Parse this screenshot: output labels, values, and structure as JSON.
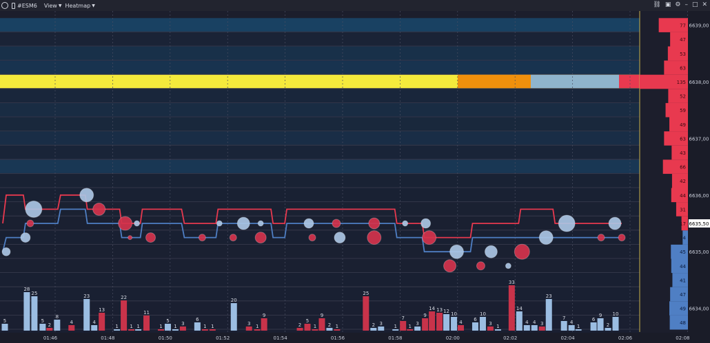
{
  "toolbar": {
    "symbol": "#ESM6",
    "view_label": "View",
    "heatmap_label": "Heatmap",
    "right_icons": [
      "link-icon",
      "camera-icon",
      "gear-icon",
      "minimize-icon",
      "maximize-icon",
      "close-icon"
    ],
    "icon_glyphs": [
      "⛓",
      "▣",
      "⚙",
      "–",
      "□",
      "✕"
    ]
  },
  "colors": {
    "background": "#1c1e2c",
    "bid_line": "#4f7fc4",
    "ask_line": "#e8394f",
    "sell_bar": "#c8334a",
    "buy_bar": "#9bbde2",
    "profile_ask": "#e8394f",
    "profile_bid": "#4f7fc4",
    "cursor": "#c9b34c"
  },
  "chart_data": {
    "type": "heatmap",
    "price_axis": {
      "labels": [
        "6639,00",
        "6638,00",
        "6637,00",
        "6636,00",
        "6635,50",
        "6635,00",
        "6634,00"
      ],
      "current_price": "6635,50",
      "ylim": [
        6633.25,
        6639.25
      ],
      "tick_step": 0.25
    },
    "time_axis": {
      "labels": [
        "01:46",
        "01:48",
        "01:50",
        "01:52",
        "01:54",
        "01:56",
        "01:58",
        "02:00",
        "02:02",
        "02:04",
        "02:06",
        "02:08"
      ]
    },
    "heatmap_rows": [
      {
        "price": 6639.0,
        "level": 0.55
      },
      {
        "price": 6638.75,
        "level": 0.12
      },
      {
        "price": 6638.5,
        "level": 0.35
      },
      {
        "price": 6638.25,
        "level": 0.4
      },
      {
        "price": 6638.0,
        "level": 1.0
      },
      {
        "price": 6637.75,
        "level": 0.2
      },
      {
        "price": 6637.5,
        "level": 0.3
      },
      {
        "price": 6637.25,
        "level": 0.22
      },
      {
        "price": 6637.0,
        "level": 0.32
      },
      {
        "price": 6636.75,
        "level": 0.15
      },
      {
        "price": 6636.5,
        "level": 0.45
      },
      {
        "price": 6636.25,
        "level": 0.1
      },
      {
        "price": 6636.0,
        "level": 0.08
      },
      {
        "price": 6635.75,
        "level": 0.06
      },
      {
        "price": 6635.5,
        "level": 0.05
      },
      {
        "price": 6635.25,
        "level": 0.04
      },
      {
        "price": 6635.0,
        "level": 0.05
      },
      {
        "price": 6634.75,
        "level": 0.05
      },
      {
        "price": 6634.5,
        "level": 0.04
      },
      {
        "price": 6634.25,
        "level": 0.04
      },
      {
        "price": 6634.0,
        "level": 0.03
      },
      {
        "price": 6633.75,
        "level": 0.03
      },
      {
        "price": 6633.5,
        "level": 0.03
      }
    ],
    "depth_profile": {
      "ask": [
        {
          "price": 6639.0,
          "size": 77
        },
        {
          "price": 6638.75,
          "size": 47
        },
        {
          "price": 6638.5,
          "size": 53
        },
        {
          "price": 6638.25,
          "size": 63
        },
        {
          "price": 6638.0,
          "size": 135
        },
        {
          "price": 6637.75,
          "size": 52
        },
        {
          "price": 6637.5,
          "size": 59
        },
        {
          "price": 6637.25,
          "size": 49
        },
        {
          "price": 6637.0,
          "size": 63
        },
        {
          "price": 6636.75,
          "size": 43
        },
        {
          "price": 6636.5,
          "size": 66
        },
        {
          "price": 6636.25,
          "size": 42
        },
        {
          "price": 6636.0,
          "size": 44
        },
        {
          "price": 6635.75,
          "size": 31
        },
        {
          "price": 6635.5,
          "size": 17
        }
      ],
      "bid": [
        {
          "price": 6635.25,
          "size": 14
        },
        {
          "price": 6635.0,
          "size": 45
        },
        {
          "price": 6634.75,
          "size": 44
        },
        {
          "price": 6634.5,
          "size": 41
        },
        {
          "price": 6634.25,
          "size": 47
        },
        {
          "price": 6634.0,
          "size": 49
        },
        {
          "price": 6633.75,
          "size": 48
        }
      ]
    },
    "best_ask": [
      {
        "t": 0.0,
        "p": 6635.5
      },
      {
        "t": 0.5,
        "p": 6636.0
      },
      {
        "t": 3.0,
        "p": 6636.0
      },
      {
        "t": 3.3,
        "p": 6635.75
      },
      {
        "t": 8.0,
        "p": 6635.75
      },
      {
        "t": 8.4,
        "p": 6636.0
      },
      {
        "t": 12.0,
        "p": 6636.0
      },
      {
        "t": 12.3,
        "p": 6635.75
      },
      {
        "t": 17.0,
        "p": 6635.75
      },
      {
        "t": 17.3,
        "p": 6635.5
      },
      {
        "t": 20.0,
        "p": 6635.5
      },
      {
        "t": 20.3,
        "p": 6635.75
      },
      {
        "t": 26.0,
        "p": 6635.75
      },
      {
        "t": 26.4,
        "p": 6635.5
      },
      {
        "t": 31.0,
        "p": 6635.5
      },
      {
        "t": 31.3,
        "p": 6635.75
      },
      {
        "t": 39.0,
        "p": 6635.75
      },
      {
        "t": 39.3,
        "p": 6635.5
      },
      {
        "t": 41.0,
        "p": 6635.5
      },
      {
        "t": 41.3,
        "p": 6635.75
      },
      {
        "t": 48.0,
        "p": 6635.75
      },
      {
        "t": 48.3,
        "p": 6635.75
      },
      {
        "t": 57.0,
        "p": 6635.75
      },
      {
        "t": 57.3,
        "p": 6635.5
      },
      {
        "t": 61.0,
        "p": 6635.5
      },
      {
        "t": 61.3,
        "p": 6635.25
      },
      {
        "t": 68.0,
        "p": 6635.25
      },
      {
        "t": 68.3,
        "p": 6635.5
      },
      {
        "t": 75.0,
        "p": 6635.5
      },
      {
        "t": 75.3,
        "p": 6635.75
      },
      {
        "t": 80.0,
        "p": 6635.75
      },
      {
        "t": 80.3,
        "p": 6635.5
      },
      {
        "t": 84.0,
        "p": 6635.5
      },
      {
        "t": 84.3,
        "p": 6635.5
      },
      {
        "t": 87.0,
        "p": 6635.5
      },
      {
        "t": 87.3,
        "p": 6635.5
      },
      {
        "t": 90.0,
        "p": 6635.5
      }
    ],
    "best_bid": [
      {
        "t": 0.0,
        "p": 6635.0
      },
      {
        "t": 0.5,
        "p": 6635.25
      },
      {
        "t": 3.0,
        "p": 6635.25
      },
      {
        "t": 3.3,
        "p": 6635.5
      },
      {
        "t": 8.0,
        "p": 6635.5
      },
      {
        "t": 8.4,
        "p": 6635.75
      },
      {
        "t": 12.0,
        "p": 6635.75
      },
      {
        "t": 12.3,
        "p": 6635.5
      },
      {
        "t": 17.0,
        "p": 6635.5
      },
      {
        "t": 17.3,
        "p": 6635.25
      },
      {
        "t": 20.0,
        "p": 6635.25
      },
      {
        "t": 20.3,
        "p": 6635.5
      },
      {
        "t": 26.0,
        "p": 6635.5
      },
      {
        "t": 26.4,
        "p": 6635.25
      },
      {
        "t": 31.0,
        "p": 6635.25
      },
      {
        "t": 31.3,
        "p": 6635.5
      },
      {
        "t": 39.0,
        "p": 6635.5
      },
      {
        "t": 39.3,
        "p": 6635.25
      },
      {
        "t": 41.0,
        "p": 6635.25
      },
      {
        "t": 41.3,
        "p": 6635.5
      },
      {
        "t": 48.0,
        "p": 6635.5
      },
      {
        "t": 48.3,
        "p": 6635.5
      },
      {
        "t": 57.0,
        "p": 6635.5
      },
      {
        "t": 57.3,
        "p": 6635.25
      },
      {
        "t": 61.0,
        "p": 6635.25
      },
      {
        "t": 61.3,
        "p": 6635.0
      },
      {
        "t": 68.0,
        "p": 6635.0
      },
      {
        "t": 68.3,
        "p": 6635.25
      },
      {
        "t": 75.0,
        "p": 6635.25
      },
      {
        "t": 75.3,
        "p": 6635.25
      },
      {
        "t": 80.0,
        "p": 6635.25
      },
      {
        "t": 80.3,
        "p": 6635.25
      },
      {
        "t": 84.0,
        "p": 6635.25
      },
      {
        "t": 84.3,
        "p": 6635.25
      },
      {
        "t": 87.0,
        "p": 6635.25
      },
      {
        "t": 87.3,
        "p": 6635.25
      },
      {
        "t": 90.0,
        "p": 6635.25
      }
    ],
    "trade_bubbles": [
      {
        "t": 0.5,
        "p": 6635.0,
        "size": 6,
        "side": "buy"
      },
      {
        "t": 3.3,
        "p": 6635.25,
        "size": 7,
        "side": "buy"
      },
      {
        "t": 4.5,
        "p": 6635.75,
        "size": 12,
        "side": "buy"
      },
      {
        "t": 4.0,
        "p": 6635.5,
        "size": 5,
        "side": "sell"
      },
      {
        "t": 12.2,
        "p": 6636.0,
        "size": 10,
        "side": "buy"
      },
      {
        "t": 14.0,
        "p": 6635.75,
        "size": 9,
        "side": "sell"
      },
      {
        "t": 17.8,
        "p": 6635.5,
        "size": 10,
        "side": "sell"
      },
      {
        "t": 19.5,
        "p": 6635.5,
        "size": 4,
        "side": "buy"
      },
      {
        "t": 18.5,
        "p": 6635.25,
        "size": 3,
        "side": "sell"
      },
      {
        "t": 21.5,
        "p": 6635.25,
        "size": 7,
        "side": "sell"
      },
      {
        "t": 29.0,
        "p": 6635.25,
        "size": 5,
        "side": "sell"
      },
      {
        "t": 31.5,
        "p": 6635.5,
        "size": 4,
        "side": "buy"
      },
      {
        "t": 33.5,
        "p": 6635.25,
        "size": 5,
        "side": "sell"
      },
      {
        "t": 35.0,
        "p": 6635.5,
        "size": 9,
        "side": "buy"
      },
      {
        "t": 37.5,
        "p": 6635.25,
        "size": 8,
        "side": "sell"
      },
      {
        "t": 37.5,
        "p": 6635.5,
        "size": 4,
        "side": "buy"
      },
      {
        "t": 44.5,
        "p": 6635.5,
        "size": 7,
        "side": "buy"
      },
      {
        "t": 45.0,
        "p": 6635.25,
        "size": 5,
        "side": "sell"
      },
      {
        "t": 48.5,
        "p": 6635.5,
        "size": 6,
        "side": "sell"
      },
      {
        "t": 49.0,
        "p": 6635.25,
        "size": 8,
        "side": "buy"
      },
      {
        "t": 54.0,
        "p": 6635.5,
        "size": 8,
        "side": "sell"
      },
      {
        "t": 54.0,
        "p": 6635.25,
        "size": 10,
        "side": "sell"
      },
      {
        "t": 58.5,
        "p": 6635.5,
        "size": 4,
        "side": "buy"
      },
      {
        "t": 61.5,
        "p": 6635.5,
        "size": 7,
        "side": "buy"
      },
      {
        "t": 62.0,
        "p": 6635.25,
        "size": 10,
        "side": "sell"
      },
      {
        "t": 65.0,
        "p": 6634.75,
        "size": 9,
        "side": "sell"
      },
      {
        "t": 66.0,
        "p": 6635.0,
        "size": 10,
        "side": "buy"
      },
      {
        "t": 69.5,
        "p": 6634.75,
        "size": 6,
        "side": "sell"
      },
      {
        "t": 71.0,
        "p": 6635.0,
        "size": 9,
        "side": "buy"
      },
      {
        "t": 73.5,
        "p": 6634.75,
        "size": 4,
        "side": "buy"
      },
      {
        "t": 75.5,
        "p": 6635.0,
        "size": 11,
        "side": "sell"
      },
      {
        "t": 79.0,
        "p": 6635.25,
        "size": 10,
        "side": "buy"
      },
      {
        "t": 82.0,
        "p": 6635.5,
        "size": 12,
        "side": "buy"
      },
      {
        "t": 87.0,
        "p": 6635.25,
        "size": 5,
        "side": "sell"
      },
      {
        "t": 89.0,
        "p": 6635.5,
        "size": 9,
        "side": "buy"
      },
      {
        "t": 90.0,
        "p": 6635.25,
        "size": 5,
        "side": "sell"
      }
    ],
    "volume_bars": [
      {
        "t": 0.3,
        "v": 5,
        "side": "buy"
      },
      {
        "t": 3.5,
        "v": 28,
        "side": "buy"
      },
      {
        "t": 4.6,
        "v": 25,
        "side": "buy"
      },
      {
        "t": 5.8,
        "v": 5,
        "side": "buy"
      },
      {
        "t": 6.8,
        "v": 2,
        "side": "sell"
      },
      {
        "t": 7.9,
        "v": 8,
        "side": "buy"
      },
      {
        "t": 10.0,
        "v": 4,
        "side": "sell"
      },
      {
        "t": 12.2,
        "v": 23,
        "side": "buy"
      },
      {
        "t": 13.3,
        "v": 4,
        "side": "buy"
      },
      {
        "t": 14.4,
        "v": 13,
        "side": "sell"
      },
      {
        "t": 16.6,
        "v": 1,
        "side": "buy"
      },
      {
        "t": 17.6,
        "v": 22,
        "side": "sell"
      },
      {
        "t": 18.7,
        "v": 1,
        "side": "sell"
      },
      {
        "t": 19.7,
        "v": 1,
        "side": "buy"
      },
      {
        "t": 20.9,
        "v": 11,
        "side": "sell"
      },
      {
        "t": 23.0,
        "v": 1,
        "side": "sell"
      },
      {
        "t": 24.0,
        "v": 5,
        "side": "buy"
      },
      {
        "t": 25.1,
        "v": 1,
        "side": "buy"
      },
      {
        "t": 26.2,
        "v": 3,
        "side": "sell"
      },
      {
        "t": 28.3,
        "v": 6,
        "side": "buy"
      },
      {
        "t": 29.4,
        "v": 1,
        "side": "sell"
      },
      {
        "t": 30.5,
        "v": 1,
        "side": "sell"
      },
      {
        "t": 33.6,
        "v": 20,
        "side": "buy"
      },
      {
        "t": 35.8,
        "v": 3,
        "side": "sell"
      },
      {
        "t": 37.0,
        "v": 1,
        "side": "sell"
      },
      {
        "t": 38.0,
        "v": 9,
        "side": "sell"
      },
      {
        "t": 43.2,
        "v": 2,
        "side": "sell"
      },
      {
        "t": 44.3,
        "v": 5,
        "side": "sell"
      },
      {
        "t": 45.4,
        "v": 1,
        "side": "sell"
      },
      {
        "t": 46.4,
        "v": 9,
        "side": "sell"
      },
      {
        "t": 47.5,
        "v": 2,
        "side": "buy"
      },
      {
        "t": 48.6,
        "v": 1,
        "side": "sell"
      },
      {
        "t": 52.8,
        "v": 25,
        "side": "sell"
      },
      {
        "t": 53.9,
        "v": 2,
        "side": "buy"
      },
      {
        "t": 55.0,
        "v": 3,
        "side": "buy"
      },
      {
        "t": 57.1,
        "v": 1,
        "side": "buy"
      },
      {
        "t": 58.2,
        "v": 7,
        "side": "sell"
      },
      {
        "t": 59.2,
        "v": 1,
        "side": "sell"
      },
      {
        "t": 60.3,
        "v": 3,
        "side": "buy"
      },
      {
        "t": 61.4,
        "v": 9,
        "side": "sell"
      },
      {
        "t": 62.4,
        "v": 14,
        "side": "sell"
      },
      {
        "t": 63.5,
        "v": 13,
        "side": "sell"
      },
      {
        "t": 64.5,
        "v": 12,
        "side": "buy"
      },
      {
        "t": 65.6,
        "v": 10,
        "side": "buy"
      },
      {
        "t": 66.6,
        "v": 4,
        "side": "sell"
      },
      {
        "t": 68.7,
        "v": 6,
        "side": "buy"
      },
      {
        "t": 69.8,
        "v": 10,
        "side": "buy"
      },
      {
        "t": 70.9,
        "v": 3,
        "side": "sell"
      },
      {
        "t": 72.0,
        "v": 1,
        "side": "buy"
      },
      {
        "t": 74.0,
        "v": 33,
        "side": "sell"
      },
      {
        "t": 75.1,
        "v": 14,
        "side": "buy"
      },
      {
        "t": 76.2,
        "v": 4,
        "side": "buy"
      },
      {
        "t": 77.3,
        "v": 4,
        "side": "buy"
      },
      {
        "t": 78.4,
        "v": 3,
        "side": "sell"
      },
      {
        "t": 79.4,
        "v": 23,
        "side": "buy"
      },
      {
        "t": 81.6,
        "v": 7,
        "side": "buy"
      },
      {
        "t": 82.7,
        "v": 4,
        "side": "buy"
      },
      {
        "t": 83.7,
        "v": 1,
        "side": "buy"
      },
      {
        "t": 85.9,
        "v": 6,
        "side": "buy"
      },
      {
        "t": 86.9,
        "v": 9,
        "side": "buy"
      },
      {
        "t": 88.0,
        "v": 2,
        "side": "buy"
      },
      {
        "t": 89.1,
        "v": 10,
        "side": "buy"
      }
    ]
  }
}
